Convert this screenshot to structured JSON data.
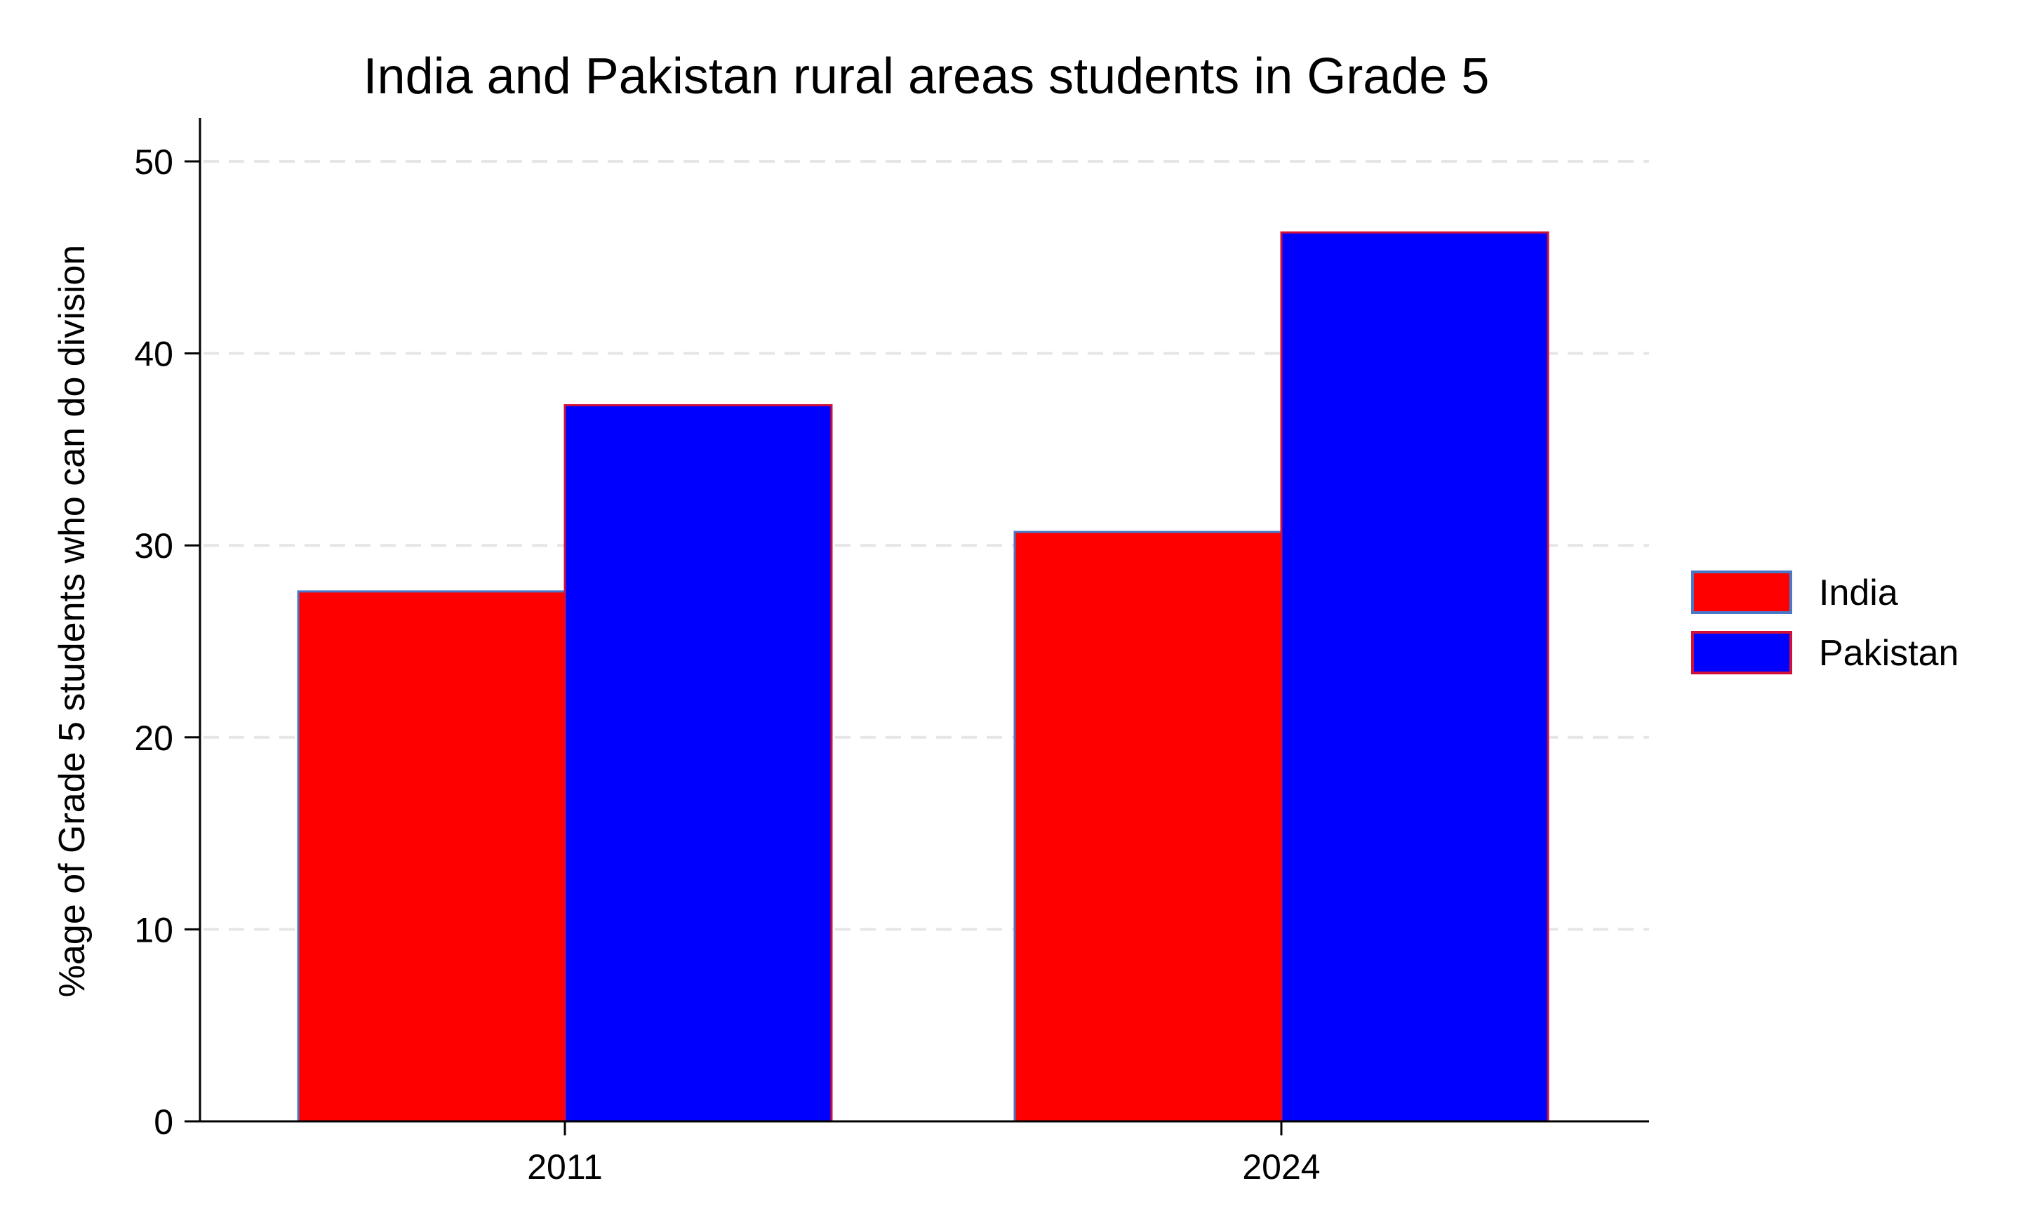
{
  "chart_data": {
    "type": "bar",
    "title": "India and Pakistan rural areas students in Grade 5",
    "xlabel": "",
    "ylabel": "%age of Grade 5 students who can do division",
    "categories": [
      "2011",
      "2024"
    ],
    "series": [
      {
        "name": "India",
        "values": [
          27.6,
          30.7
        ],
        "color": "#ff0000",
        "edge_color": "#4a78c8"
      },
      {
        "name": "Pakistan",
        "values": [
          37.3,
          46.3
        ],
        "color": "#0000ff",
        "edge_color": "#d0103a"
      }
    ],
    "ylim": [
      0,
      52
    ],
    "yticks": [
      0,
      10,
      20,
      30,
      40,
      50
    ],
    "ytick_labels": [
      "0",
      "10",
      "20",
      "30",
      "40",
      "50"
    ],
    "grid": "horizontal dashed",
    "grid_color": "#e6e6e6",
    "legend_position": "right"
  }
}
